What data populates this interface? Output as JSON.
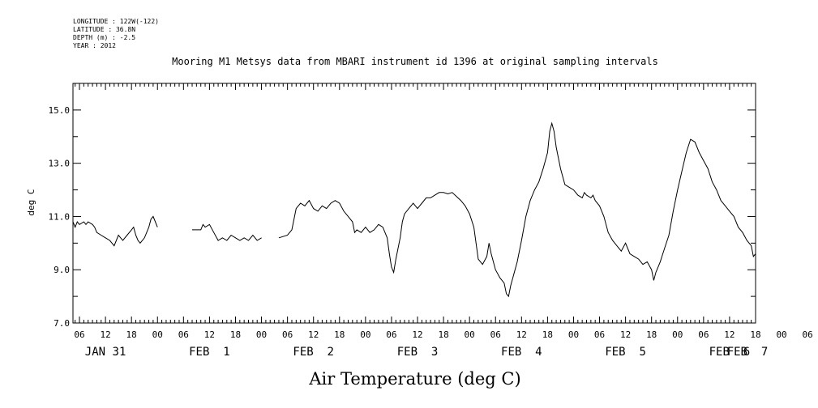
{
  "header": {
    "lines": [
      "LONGITUDE : 122W(-122)",
      "LATITUDE : 36.8N",
      "DEPTH (m) : -2.5",
      "YEAR : 2012"
    ]
  },
  "chart_data": {
    "type": "line",
    "title": "Mooring M1 Metsys data from MBARI instrument id 1396 at original sampling intervals",
    "xlabel": "Air Temperature (deg C)",
    "ylabel": "deg C",
    "ylim": [
      7.0,
      16.0
    ],
    "yticks": [
      "7.0",
      "9.0",
      "11.0",
      "13.0",
      "15.0"
    ],
    "x_units": "hours since 2012-01-31 00:00",
    "xlim": [
      4.5,
      162
    ],
    "hour_ticks": [
      "06",
      "12",
      "18",
      "00",
      "06",
      "12",
      "18",
      "00",
      "06",
      "12",
      "18",
      "00",
      "06",
      "12",
      "18",
      "00",
      "06",
      "12",
      "18",
      "00",
      "06",
      "12",
      "18",
      "00",
      "06",
      "12",
      "18",
      "00",
      "06",
      "12",
      "18",
      "00"
    ],
    "day_labels": [
      "JAN 31",
      "FEB  1",
      "FEB  2",
      "FEB  3",
      "FEB  4",
      "FEB  5",
      "FEB  6",
      "FEB  7"
    ],
    "grid": false,
    "series": [
      {
        "values": [
          [
            4.5,
            10.8
          ],
          [
            5,
            10.6
          ],
          [
            5.5,
            10.8
          ],
          [
            6,
            10.7
          ],
          [
            7,
            10.8
          ],
          [
            7.5,
            10.7
          ],
          [
            8,
            10.8
          ],
          [
            9,
            10.7
          ],
          [
            9.5,
            10.6
          ],
          [
            10,
            10.4
          ],
          [
            11,
            10.3
          ],
          [
            12,
            10.2
          ],
          [
            13,
            10.1
          ],
          [
            13.5,
            10.0
          ],
          [
            14,
            9.9
          ],
          [
            14.5,
            10.1
          ],
          [
            15,
            10.3
          ],
          [
            15.5,
            10.2
          ],
          [
            16,
            10.1
          ],
          [
            17,
            10.3
          ],
          [
            18,
            10.5
          ],
          [
            18.5,
            10.6
          ],
          [
            19,
            10.3
          ],
          [
            19.5,
            10.1
          ],
          [
            20,
            10.0
          ],
          [
            21,
            10.2
          ],
          [
            22,
            10.6
          ],
          [
            22.5,
            10.9
          ],
          [
            23,
            11.0
          ],
          [
            23.5,
            10.8
          ],
          [
            24,
            10.6
          ],
          [
            32,
            10.5
          ],
          [
            34,
            10.5
          ],
          [
            34.5,
            10.7
          ],
          [
            35,
            10.6
          ],
          [
            36,
            10.7
          ],
          [
            37,
            10.4
          ],
          [
            38,
            10.1
          ],
          [
            39,
            10.2
          ],
          [
            40,
            10.1
          ],
          [
            41,
            10.3
          ],
          [
            42,
            10.2
          ],
          [
            43,
            10.1
          ],
          [
            44,
            10.2
          ],
          [
            45,
            10.1
          ],
          [
            46,
            10.3
          ],
          [
            47,
            10.1
          ],
          [
            48,
            10.2
          ],
          [
            52,
            10.2
          ],
          [
            54,
            10.3
          ],
          [
            55,
            10.5
          ],
          [
            56,
            11.3
          ],
          [
            57,
            11.5
          ],
          [
            58,
            11.4
          ],
          [
            59,
            11.6
          ],
          [
            60,
            11.3
          ],
          [
            61,
            11.2
          ],
          [
            62,
            11.4
          ],
          [
            63,
            11.3
          ],
          [
            64,
            11.5
          ],
          [
            65,
            11.6
          ],
          [
            66,
            11.5
          ],
          [
            67,
            11.2
          ],
          [
            68,
            11.0
          ],
          [
            69,
            10.8
          ],
          [
            69.5,
            10.4
          ],
          [
            70,
            10.5
          ],
          [
            71,
            10.4
          ],
          [
            72,
            10.6
          ],
          [
            73,
            10.4
          ],
          [
            74,
            10.5
          ],
          [
            75,
            10.7
          ],
          [
            76,
            10.6
          ],
          [
            76.5,
            10.4
          ],
          [
            77,
            10.2
          ],
          [
            77.5,
            9.6
          ],
          [
            78,
            9.1
          ],
          [
            78.5,
            8.9
          ],
          [
            79,
            9.4
          ],
          [
            80,
            10.2
          ],
          [
            80.5,
            10.8
          ],
          [
            81,
            11.1
          ],
          [
            82,
            11.3
          ],
          [
            83,
            11.5
          ],
          [
            84,
            11.3
          ],
          [
            85,
            11.5
          ],
          [
            86,
            11.7
          ],
          [
            87,
            11.7
          ],
          [
            88,
            11.8
          ],
          [
            89,
            11.9
          ],
          [
            90,
            11.9
          ],
          [
            91,
            11.85
          ],
          [
            92,
            11.9
          ],
          [
            93,
            11.75
          ],
          [
            94,
            11.6
          ],
          [
            95,
            11.4
          ],
          [
            96,
            11.1
          ],
          [
            97,
            10.6
          ],
          [
            97.5,
            10.0
          ],
          [
            98,
            9.4
          ],
          [
            99,
            9.2
          ],
          [
            100,
            9.5
          ],
          [
            100.5,
            10.0
          ],
          [
            101,
            9.6
          ],
          [
            102,
            9.0
          ],
          [
            103,
            8.7
          ],
          [
            104,
            8.5
          ],
          [
            104.5,
            8.1
          ],
          [
            105,
            8.0
          ],
          [
            105.5,
            8.4
          ],
          [
            106,
            8.7
          ],
          [
            107,
            9.3
          ],
          [
            108,
            10.1
          ],
          [
            109,
            11.0
          ],
          [
            110,
            11.6
          ],
          [
            111,
            12.0
          ],
          [
            112,
            12.3
          ],
          [
            113,
            12.8
          ],
          [
            114,
            13.4
          ],
          [
            114.5,
            14.2
          ],
          [
            115,
            14.5
          ],
          [
            115.5,
            14.2
          ],
          [
            116,
            13.6
          ],
          [
            117,
            12.8
          ],
          [
            118,
            12.2
          ],
          [
            119,
            12.1
          ],
          [
            120,
            12.0
          ],
          [
            121,
            11.8
          ],
          [
            122,
            11.7
          ],
          [
            122.5,
            11.9
          ],
          [
            123,
            11.8
          ],
          [
            124,
            11.7
          ],
          [
            124.5,
            11.8
          ],
          [
            125,
            11.6
          ],
          [
            126,
            11.4
          ],
          [
            127,
            11.0
          ],
          [
            128,
            10.4
          ],
          [
            129,
            10.1
          ],
          [
            130,
            9.9
          ],
          [
            131,
            9.7
          ],
          [
            132,
            10.0
          ],
          [
            133,
            9.6
          ],
          [
            134,
            9.5
          ],
          [
            135,
            9.4
          ],
          [
            136,
            9.2
          ],
          [
            137,
            9.3
          ],
          [
            138,
            9.0
          ],
          [
            138.5,
            8.6
          ],
          [
            139,
            8.9
          ],
          [
            140,
            9.3
          ],
          [
            141,
            9.8
          ],
          [
            142,
            10.3
          ],
          [
            143,
            11.2
          ],
          [
            144,
            12.0
          ],
          [
            145,
            12.7
          ],
          [
            146,
            13.4
          ],
          [
            147,
            13.9
          ],
          [
            148,
            13.8
          ],
          [
            149,
            13.4
          ],
          [
            150,
            13.1
          ],
          [
            151,
            12.8
          ],
          [
            152,
            12.3
          ],
          [
            153,
            12.0
          ],
          [
            154,
            11.6
          ],
          [
            155,
            11.4
          ],
          [
            156,
            11.2
          ],
          [
            157,
            11.0
          ],
          [
            158,
            10.6
          ],
          [
            159,
            10.4
          ],
          [
            160,
            10.1
          ],
          [
            161,
            9.9
          ],
          [
            161.5,
            9.5
          ],
          [
            162,
            9.6
          ]
        ]
      }
    ]
  }
}
